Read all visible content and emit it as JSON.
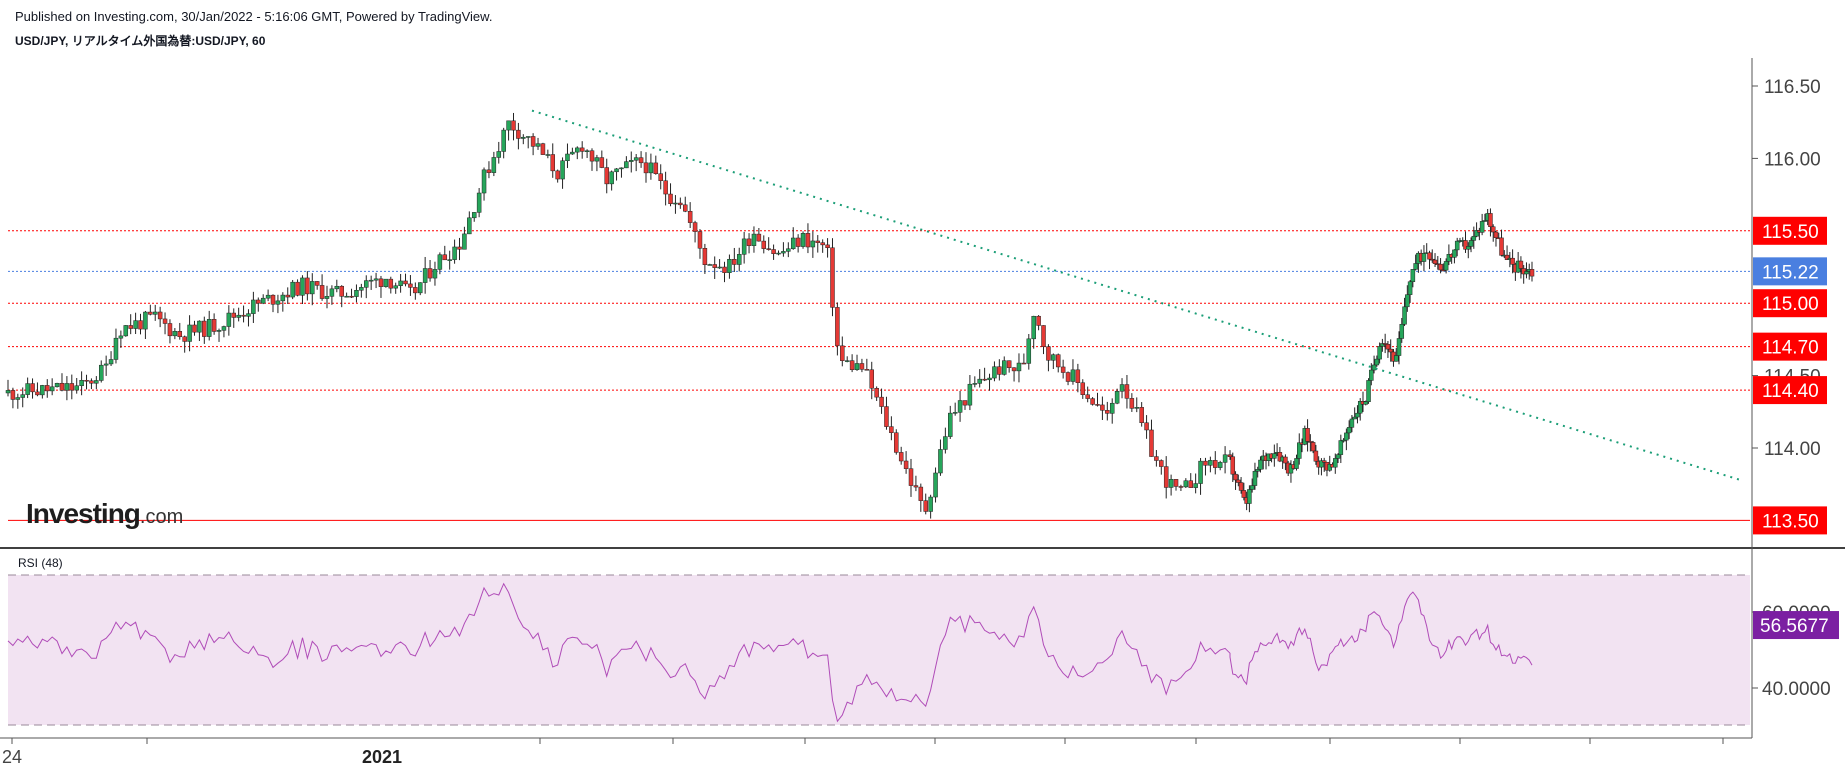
{
  "header": {
    "published": "Published on Investing.com, 30/Jan/2022 - 5:16:06 GMT, Powered by TradingView.",
    "symbol": "USD/JPY, リアルタイム外国為替:USD/JPY, 60"
  },
  "logo": {
    "main": "Investing",
    "suffix": ".com"
  },
  "colors": {
    "up": "#26a65b",
    "down": "#e53935",
    "level": "#ff0000",
    "current": "#4a7fe0",
    "trend": "#1b9e77",
    "rsi_line": "#9c27b0",
    "rsi_band": "#f2e3f2",
    "rsi_label_bg": "#7b1fa2"
  },
  "chart_data": [
    {
      "type": "candlestick",
      "title": "USD/JPY, リアルタイム外国為替:USD/JPY, 60",
      "ylim": [
        113.35,
        116.6
      ],
      "y_ticks": [
        "116.50",
        "116.00",
        "114.50",
        "114.00"
      ],
      "horizontal_levels": [
        {
          "value": 115.5,
          "label": "115.50"
        },
        {
          "value": 115.0,
          "label": "115.00"
        },
        {
          "value": 114.7,
          "label": "114.70"
        },
        {
          "value": 114.4,
          "label": "114.40"
        },
        {
          "value": 113.5,
          "label": "113.50"
        }
      ],
      "current_price": {
        "value": 115.22,
        "label": "115.22"
      },
      "trendline": {
        "from": [
          0,
          116.33
        ],
        "to": [
          1,
          113.78
        ]
      },
      "x_ticks": [
        "24",
        "2021"
      ],
      "price_path": [
        [
          0.0,
          114.38
        ],
        [
          0.06,
          114.42
        ],
        [
          0.08,
          114.55
        ],
        [
          0.09,
          114.82
        ],
        [
          0.12,
          114.9
        ],
        [
          0.14,
          114.78
        ],
        [
          0.17,
          114.85
        ],
        [
          0.2,
          114.98
        ],
        [
          0.24,
          115.12
        ],
        [
          0.27,
          115.06
        ],
        [
          0.31,
          115.18
        ],
        [
          0.33,
          115.05
        ],
        [
          0.35,
          115.28
        ],
        [
          0.37,
          115.42
        ],
        [
          0.39,
          115.88
        ],
        [
          0.41,
          116.25
        ],
        [
          0.43,
          116.1
        ],
        [
          0.45,
          115.9
        ],
        [
          0.47,
          116.1
        ],
        [
          0.49,
          115.85
        ],
        [
          0.51,
          115.95
        ],
        [
          0.52,
          115.98
        ],
        [
          0.54,
          115.75
        ],
        [
          0.55,
          115.72
        ],
        [
          0.57,
          115.3
        ],
        [
          0.59,
          115.25
        ],
        [
          0.61,
          115.5
        ],
        [
          0.63,
          115.33
        ],
        [
          0.65,
          115.45
        ],
        [
          0.67,
          115.38
        ],
        [
          0.68,
          114.6
        ],
        [
          0.7,
          114.55
        ],
        [
          0.72,
          114.15
        ],
        [
          0.74,
          113.75
        ],
        [
          0.75,
          113.55
        ],
        [
          0.77,
          114.2
        ],
        [
          0.79,
          114.42
        ],
        [
          0.81,
          114.55
        ],
        [
          0.83,
          114.55
        ],
        [
          0.84,
          114.98
        ],
        [
          0.85,
          114.65
        ],
        [
          0.87,
          114.5
        ],
        [
          0.88,
          114.4
        ],
        [
          0.9,
          114.2
        ],
        [
          0.91,
          114.5
        ],
        [
          0.92,
          114.3
        ],
        [
          0.94,
          113.9
        ],
        [
          0.95,
          113.75
        ],
        [
          0.96,
          113.68
        ],
        [
          0.98,
          113.9
        ]
      ],
      "price_path_2": [
        [
          0.0,
          113.9
        ],
        [
          0.03,
          113.6
        ],
        [
          0.06,
          113.9
        ],
        [
          0.09,
          114.0
        ],
        [
          0.12,
          113.85
        ],
        [
          0.15,
          114.1
        ],
        [
          0.18,
          113.88
        ],
        [
          0.21,
          113.9
        ],
        [
          0.24,
          114.2
        ],
        [
          0.27,
          114.35
        ],
        [
          0.3,
          114.78
        ],
        [
          0.33,
          114.6
        ],
        [
          0.36,
          115.22
        ],
        [
          0.39,
          115.38
        ],
        [
          0.42,
          115.25
        ],
        [
          0.45,
          115.38
        ],
        [
          0.48,
          115.42
        ],
        [
          0.51,
          115.62
        ],
        [
          0.55,
          115.28
        ],
        [
          0.6,
          115.22
        ]
      ]
    },
    {
      "type": "line",
      "title": "RSI (48)",
      "ylim": [
        27,
        76
      ],
      "y_ticks": [
        "60.0000",
        "40.0000"
      ],
      "bands": [
        70,
        30
      ],
      "current_value": {
        "value": 56.5677,
        "label": "56.5677"
      }
    }
  ]
}
